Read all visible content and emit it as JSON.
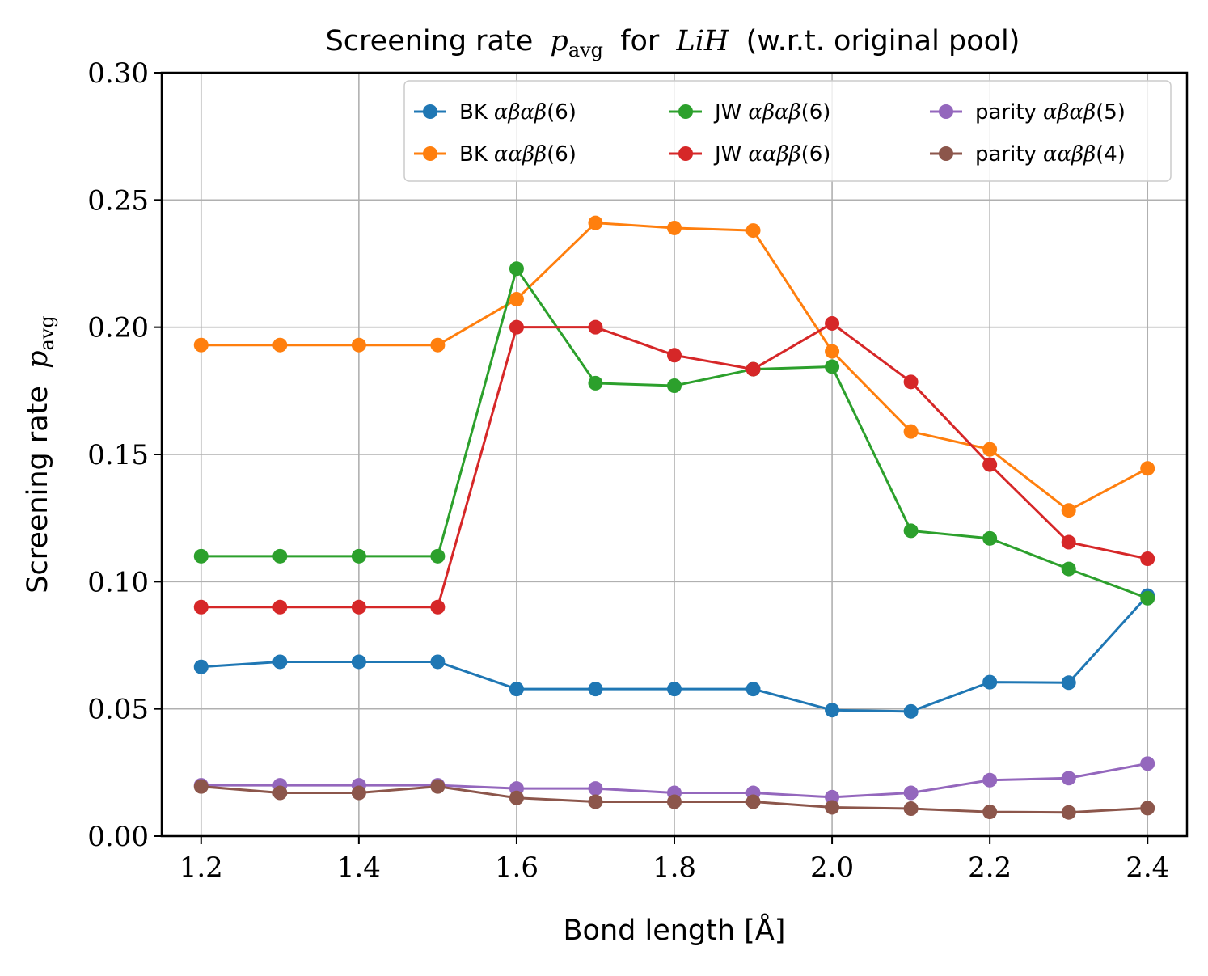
{
  "chart_data": {
    "type": "line",
    "title": "Screening rate p_avg for LiH (w.r.t. original pool)",
    "title_parts": {
      "prefix": "Screening rate",
      "var": "p",
      "sub": "avg",
      "mid": "for",
      "mol": "LiH",
      "suffix": "(w.r.t. original pool)"
    },
    "xlabel": "Bond length [Å]",
    "ylabel": "Screening rate p_avg",
    "ylabel_parts": {
      "text": "Screening rate",
      "var": "p",
      "sub": "avg"
    },
    "x": [
      1.2,
      1.3,
      1.4,
      1.5,
      1.6,
      1.7,
      1.8,
      1.9,
      2.0,
      2.1,
      2.2,
      2.3,
      2.4
    ],
    "xlim": [
      1.15,
      2.45
    ],
    "ylim": [
      0.0,
      0.3
    ],
    "xticks": [
      "1.2",
      "1.4",
      "1.6",
      "1.8",
      "2.0",
      "2.2",
      "2.4"
    ],
    "yticks": [
      "0.00",
      "0.05",
      "0.10",
      "0.15",
      "0.20",
      "0.25",
      "0.30"
    ],
    "grid": true,
    "legend_position": "top-right",
    "series": [
      {
        "name": "BK αβαβ(6)",
        "label_prefix": "BK",
        "label_greek": "αβαβ",
        "label_suffix": "(6)",
        "color": "#1f77b4",
        "values": [
          0.0665,
          0.0685,
          0.0685,
          0.0685,
          0.0578,
          0.0578,
          0.0578,
          0.0578,
          0.0495,
          0.049,
          0.0605,
          0.0603,
          0.0945
        ]
      },
      {
        "name": "BK ααββ(6)",
        "label_prefix": "BK",
        "label_greek": "ααββ",
        "label_suffix": "(6)",
        "color": "#ff7f0e",
        "values": [
          0.193,
          0.193,
          0.193,
          0.193,
          0.211,
          0.241,
          0.239,
          0.238,
          0.1905,
          0.159,
          0.152,
          0.128,
          0.1445
        ]
      },
      {
        "name": "JW αβαβ(6)",
        "label_prefix": "JW",
        "label_greek": "αβαβ",
        "label_suffix": "(6)",
        "color": "#2ca02c",
        "values": [
          0.11,
          0.11,
          0.11,
          0.11,
          0.223,
          0.178,
          0.177,
          0.1835,
          0.1845,
          0.12,
          0.117,
          0.105,
          0.0935
        ]
      },
      {
        "name": "JW ααββ(6)",
        "label_prefix": "JW",
        "label_greek": "ααββ",
        "label_suffix": "(6)",
        "color": "#d62728",
        "values": [
          0.09,
          0.09,
          0.09,
          0.09,
          0.2,
          0.2,
          0.189,
          0.1835,
          0.2015,
          0.1785,
          0.146,
          0.1155,
          0.109
        ]
      },
      {
        "name": "parity αβαβ(5)",
        "label_prefix": "parity",
        "label_greek": "αβαβ",
        "label_suffix": "(5)",
        "color": "#9467bd",
        "values": [
          0.02,
          0.02,
          0.02,
          0.02,
          0.0187,
          0.0187,
          0.017,
          0.017,
          0.0153,
          0.017,
          0.022,
          0.0228,
          0.0285
        ]
      },
      {
        "name": "parity ααββ(4)",
        "label_prefix": "parity",
        "label_greek": "ααββ",
        "label_suffix": "(4)",
        "color": "#8c564b",
        "values": [
          0.0195,
          0.017,
          0.017,
          0.0195,
          0.015,
          0.0135,
          0.0135,
          0.0135,
          0.0113,
          0.0108,
          0.0095,
          0.0093,
          0.011
        ]
      }
    ]
  }
}
